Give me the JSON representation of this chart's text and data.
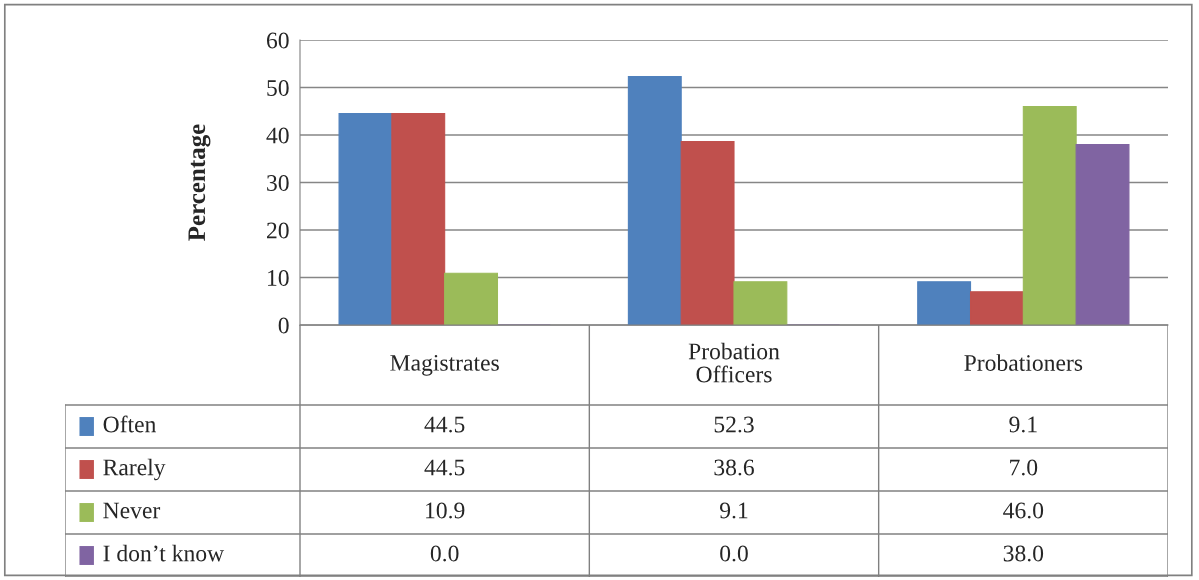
{
  "chart_data": {
    "type": "bar",
    "ylabel": "Percentage",
    "categories": [
      "Magistrates",
      "Probation Officers",
      "Probationers"
    ],
    "series": [
      {
        "name": "Often",
        "color": "#4f81bd",
        "values": [
          44.5,
          52.3,
          9.1
        ],
        "value_labels": [
          "44.5",
          "52.3",
          "9.1"
        ]
      },
      {
        "name": "Rarely",
        "color": "#c0504d",
        "values": [
          44.5,
          38.6,
          7.0
        ],
        "value_labels": [
          "44.5",
          "38.6",
          "7.0"
        ]
      },
      {
        "name": "Never",
        "color": "#9bbb59",
        "values": [
          10.9,
          9.1,
          46.0
        ],
        "value_labels": [
          "10.9",
          "9.1",
          "46.0"
        ]
      },
      {
        "name": "I don’t know",
        "color": "#8064a2",
        "values": [
          0.0,
          0.0,
          38.0
        ],
        "value_labels": [
          "0.0",
          "0.0",
          "38.0"
        ]
      }
    ],
    "ylim": [
      0,
      60
    ],
    "yticks": [
      0,
      10,
      20,
      30,
      40,
      50,
      60
    ],
    "grid": "y",
    "legend": "bottom",
    "tick_labels": "y"
  }
}
